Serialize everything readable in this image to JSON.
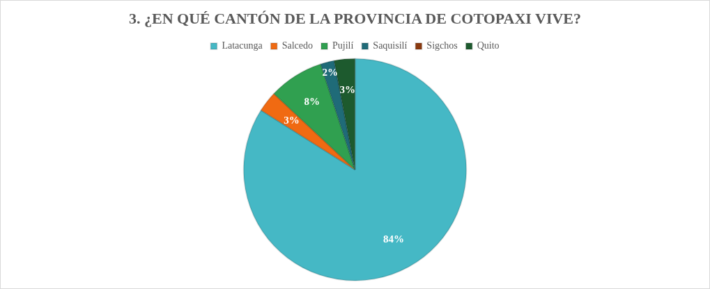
{
  "chart_data": {
    "type": "pie",
    "title": "3. ¿EN QUÉ CANTÓN DE LA PROVINCIA DE COTOPAXI VIVE?",
    "categories": [
      "Latacunga",
      "Salcedo",
      "Pujilí",
      "Saquisilí",
      "Sigchos",
      "Quito"
    ],
    "values": [
      84,
      3,
      8,
      2,
      0,
      3
    ],
    "colors": [
      "#45b8c5",
      "#f06a12",
      "#30a050",
      "#1f6b78",
      "#8b3a0f",
      "#1d5a2e"
    ],
    "value_labels": [
      "84%",
      "3%",
      "8%",
      "2%",
      null,
      "3%"
    ],
    "legend": "top"
  }
}
